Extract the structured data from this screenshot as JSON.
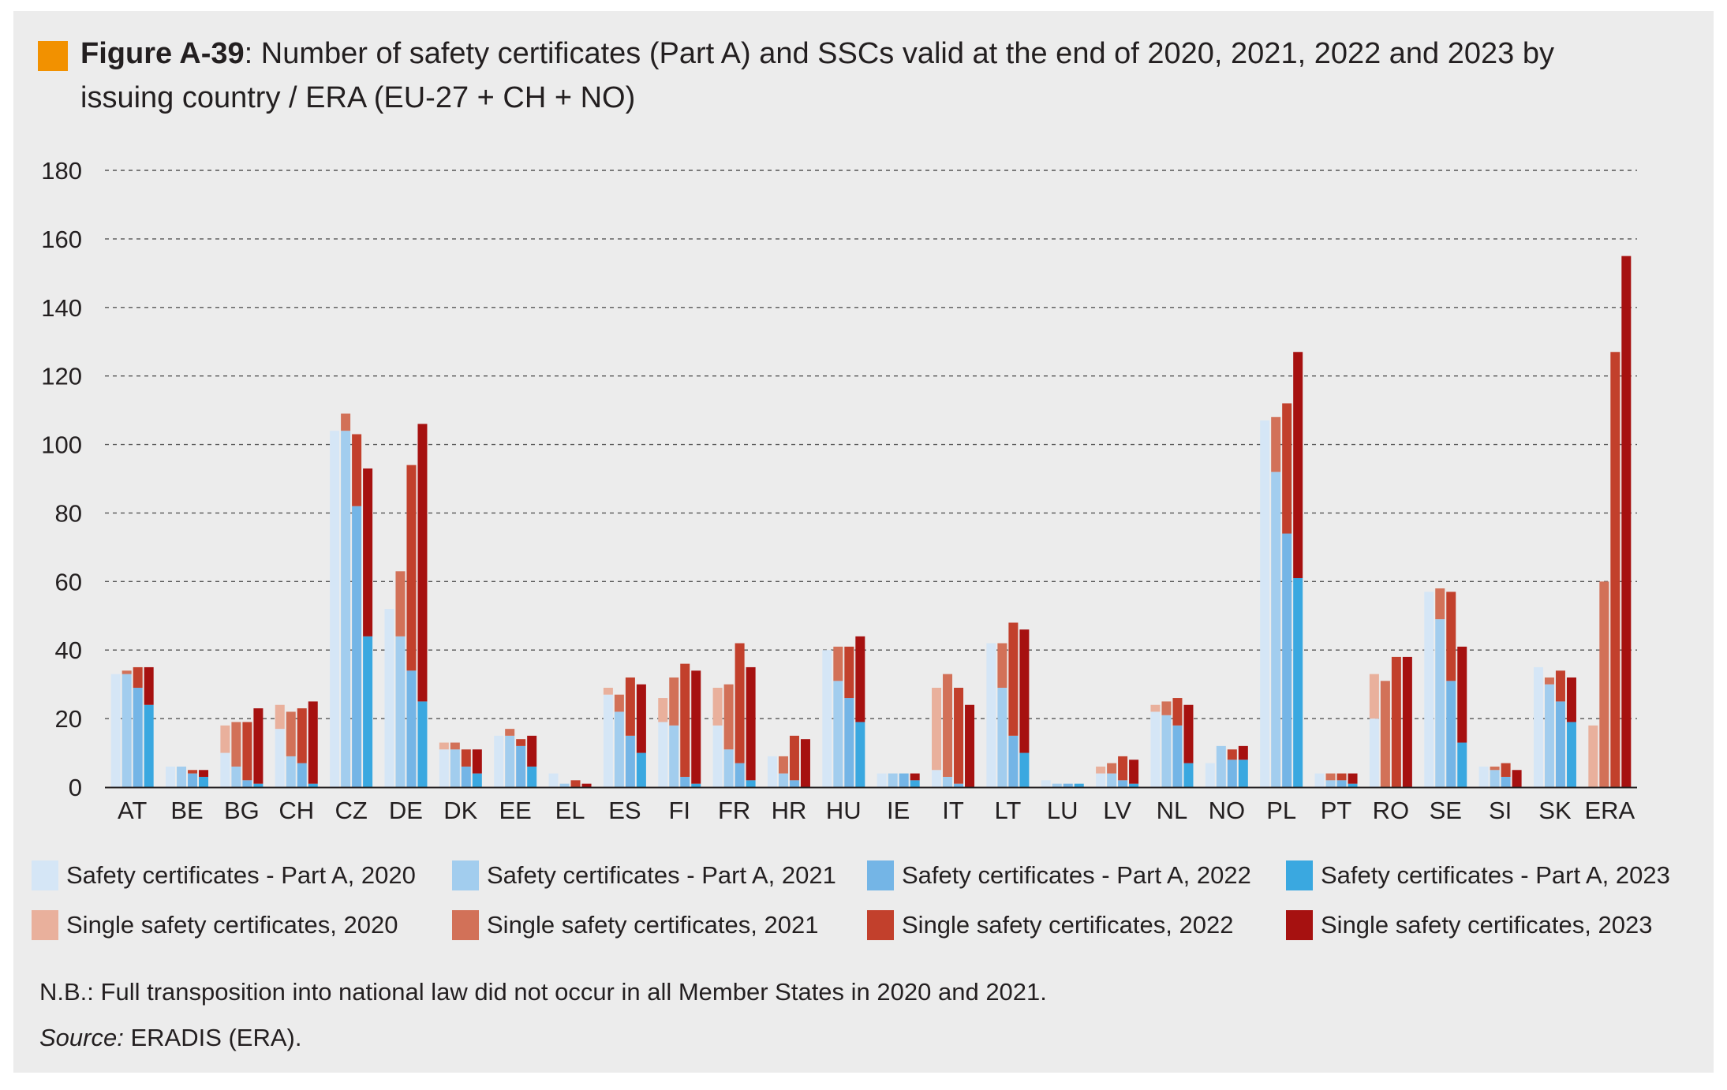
{
  "figure": {
    "label": "Figure A-39",
    "title_line1": ": Number of safety certificates (Part A) and SSCs valid at the end of 2020, 2021, 2022 and 2023 by",
    "title_line2": "issuing country / ERA (EU-27 + CH + NO)",
    "marker_color": "#f29100"
  },
  "chart_data": {
    "type": "bar",
    "stacked": true,
    "grouping": "per category: four stacked bars (2020, 2021, 2022, 2023)",
    "years": [
      "2020",
      "2021",
      "2022",
      "2023"
    ],
    "categories": [
      "AT",
      "BE",
      "BG",
      "CH",
      "CZ",
      "DE",
      "DK",
      "EE",
      "EL",
      "ES",
      "FI",
      "FR",
      "HR",
      "HU",
      "IE",
      "IT",
      "LT",
      "LU",
      "LV",
      "NL",
      "NO",
      "PL",
      "PT",
      "RO",
      "SE",
      "SI",
      "SK",
      "ERA"
    ],
    "ylim": [
      0,
      180
    ],
    "yticks": [
      "0",
      "20",
      "40",
      "60",
      "80",
      "100",
      "120",
      "140",
      "160",
      "180"
    ],
    "grid": "dashed horizontal",
    "title": "Number of safety certificates (Part A) and SSCs valid at the end of 2020, 2021, 2022 and 2023 by issuing country / ERA (EU-27 + CH + NO)",
    "xlabel": "",
    "ylabel": "",
    "series": [
      {
        "name": "Safety certificates - Part A, 2020",
        "year": "2020",
        "kind": "part_a",
        "color": "#d5e6f6",
        "values": [
          33,
          6,
          10,
          17,
          104,
          52,
          11,
          15,
          4,
          27,
          19,
          18,
          9,
          40,
          4,
          5,
          42,
          2,
          4,
          22,
          7,
          107,
          4,
          20,
          57,
          6,
          35,
          0
        ]
      },
      {
        "name": "Safety certificates - Part A, 2021",
        "year": "2021",
        "kind": "part_a",
        "color": "#a2cdee",
        "values": [
          33,
          6,
          6,
          9,
          104,
          44,
          11,
          15,
          1,
          22,
          18,
          11,
          4,
          31,
          4,
          3,
          29,
          1,
          4,
          21,
          12,
          92,
          2,
          0,
          49,
          5,
          30,
          0
        ]
      },
      {
        "name": "Safety certificates - Part A, 2022",
        "year": "2022",
        "kind": "part_a",
        "color": "#74b5e6",
        "values": [
          29,
          4,
          2,
          7,
          82,
          34,
          6,
          12,
          0,
          15,
          3,
          7,
          2,
          26,
          4,
          1,
          15,
          1,
          2,
          18,
          8,
          74,
          2,
          0,
          31,
          3,
          25,
          0
        ]
      },
      {
        "name": "Safety certificates - Part A, 2023",
        "year": "2023",
        "kind": "part_a",
        "color": "#3aa8e0",
        "values": [
          24,
          3,
          1,
          1,
          44,
          25,
          4,
          6,
          0,
          10,
          1,
          2,
          0,
          19,
          2,
          0,
          10,
          1,
          1,
          7,
          8,
          61,
          1,
          0,
          13,
          0,
          19,
          0
        ]
      },
      {
        "name": "Single safety certificates, 2020",
        "year": "2020",
        "kind": "ssc",
        "color": "#e9b09c",
        "values": [
          0,
          0,
          8,
          7,
          0,
          0,
          2,
          0,
          0,
          2,
          7,
          11,
          0,
          0,
          0,
          24,
          0,
          0,
          2,
          2,
          0,
          0,
          0,
          13,
          0,
          0,
          0,
          18
        ]
      },
      {
        "name": "Single safety certificates, 2021",
        "year": "2021",
        "kind": "ssc",
        "color": "#d27158",
        "values": [
          1,
          0,
          13,
          13,
          5,
          19,
          2,
          2,
          0,
          5,
          14,
          19,
          5,
          10,
          0,
          30,
          13,
          0,
          3,
          4,
          0,
          16,
          2,
          31,
          9,
          1,
          2,
          60
        ]
      },
      {
        "name": "Single safety certificates, 2022",
        "year": "2022",
        "kind": "ssc",
        "color": "#c2402c",
        "values": [
          6,
          1,
          17,
          16,
          21,
          60,
          5,
          2,
          2,
          17,
          33,
          35,
          13,
          15,
          0,
          28,
          33,
          0,
          7,
          8,
          3,
          38,
          2,
          38,
          26,
          4,
          9,
          127
        ]
      },
      {
        "name": "Single safety certificates, 2023",
        "year": "2023",
        "kind": "ssc",
        "color": "#a61110",
        "values": [
          11,
          2,
          22,
          24,
          49,
          81,
          7,
          9,
          1,
          20,
          33,
          33,
          14,
          25,
          2,
          24,
          36,
          0,
          7,
          17,
          4,
          66,
          3,
          38,
          28,
          5,
          13,
          155
        ]
      }
    ]
  },
  "note": "N.B.: Full transposition into national law did not occur in all Member States in 2020 and 2021.",
  "source": {
    "label": "Source:",
    "text": " ERADIS (ERA)."
  }
}
